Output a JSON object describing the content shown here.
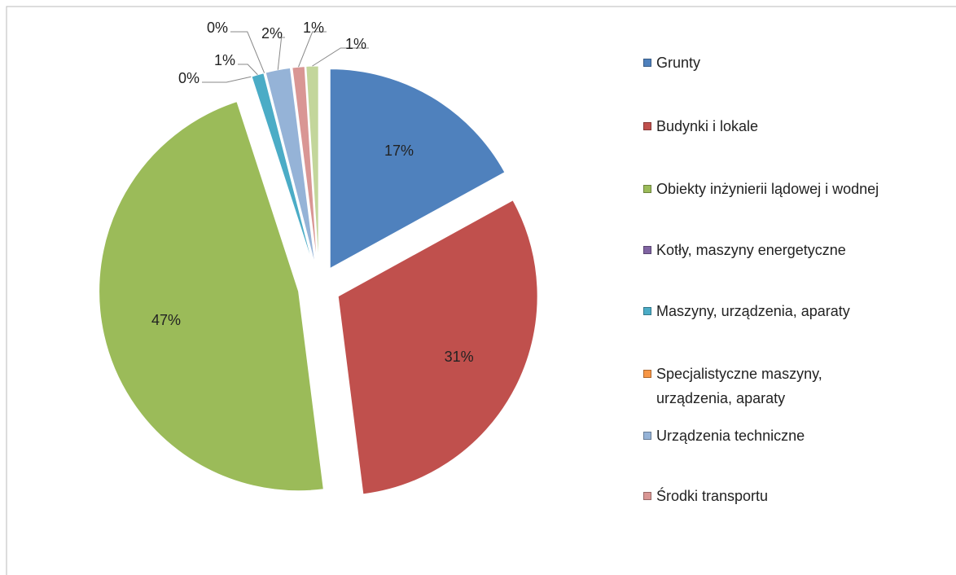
{
  "chart_data": {
    "type": "pie",
    "categories": [
      "Grunty",
      "Budynki i lokale",
      "Obiekty inżynierii lądowej i wodnej",
      "Kotły, maszyny energetyczne",
      "Maszyny, urządzenia, aparaty",
      "Specjalistyczne maszyny, urządzenia, aparaty",
      "Urządzenia techniczne",
      "Środki transportu",
      null
    ],
    "values": [
      17,
      31,
      47,
      0,
      1,
      0,
      2,
      1,
      1
    ],
    "value_labels": [
      "17%",
      "31%",
      "47%",
      "0%",
      "1%",
      "0%",
      "2%",
      "1%",
      "1%"
    ],
    "colors": [
      "#4f81bd",
      "#c0504d",
      "#9bbb59",
      "#8064a2",
      "#4bacc6",
      "#f79646",
      "#95b3d7",
      "#d99694",
      "#c3d69b"
    ],
    "legend": "right"
  }
}
